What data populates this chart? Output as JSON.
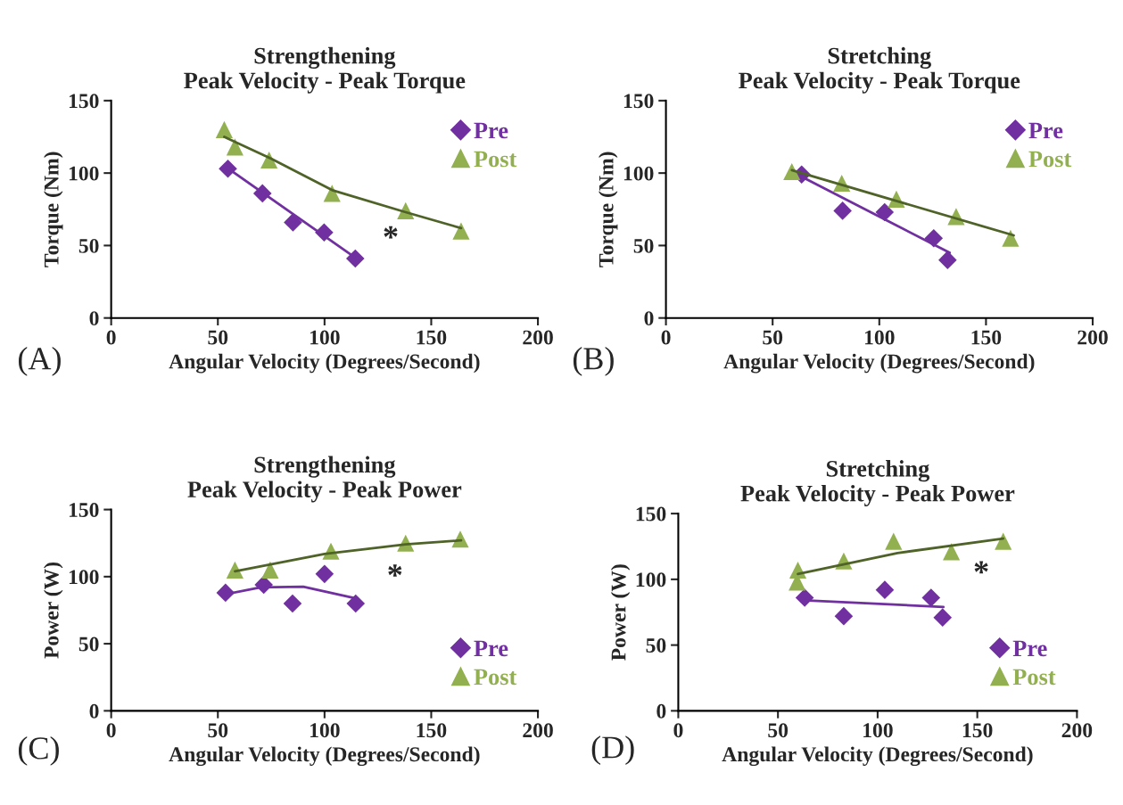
{
  "chart_data": [
    {
      "type": "scatter",
      "title": "Strengthening\nPeak Velocity - Peak Torque",
      "xlabel": "Angular Velocity (Degrees/Second)",
      "ylabel": "Torque (Nm)",
      "xlim": [
        0,
        200
      ],
      "ylim": [
        0,
        150
      ],
      "xticks": [
        0,
        50,
        100,
        150,
        200
      ],
      "yticks": [
        0,
        50,
        100,
        150
      ],
      "grid": false,
      "legend": "top right",
      "annotations": [
        "(A)",
        "*"
      ],
      "series": [
        {
          "name": "Pre",
          "marker": "diamond",
          "color": "#7030a0",
          "x": [
            54.7,
            70.9,
            85.2,
            99.8,
            114.4
          ],
          "values": [
            103,
            86,
            66,
            59,
            41
          ]
        },
        {
          "name": "Post",
          "marker": "triangle",
          "color": "#92b050",
          "x": [
            53,
            58,
            74,
            103.5,
            138,
            164
          ],
          "values": [
            130,
            118,
            109,
            86,
            74,
            60
          ]
        },
        {
          "type": "line",
          "color": "#7030a0",
          "x": [
            54,
            114
          ],
          "values": [
            104,
            42
          ]
        },
        {
          "type": "line",
          "color": "#4f6228",
          "x": [
            53,
            75,
            104,
            138,
            164
          ],
          "values": [
            125,
            110,
            88,
            73,
            62
          ]
        }
      ]
    },
    {
      "type": "scatter",
      "title": "Stretching\nPeak Velocity - Peak Torque",
      "xlabel": "Angular Velocity (Degrees/Second)",
      "ylabel": "Torque (Nm)",
      "xlim": [
        0,
        200
      ],
      "ylim": [
        0,
        150
      ],
      "xticks": [
        0,
        50,
        100,
        150,
        200
      ],
      "yticks": [
        0,
        50,
        100,
        150
      ],
      "grid": false,
      "legend": "top right",
      "annotations": [
        "(B)"
      ],
      "series": [
        {
          "name": "Pre",
          "marker": "diamond",
          "color": "#7030a0",
          "x": [
            63.6,
            82.8,
            102.5,
            125.5,
            132
          ],
          "values": [
            99,
            74,
            73,
            55,
            40
          ]
        },
        {
          "name": "Post",
          "marker": "triangle",
          "color": "#92b050",
          "x": [
            59,
            82.4,
            108,
            136,
            161.5
          ],
          "values": [
            101,
            93,
            82,
            70,
            55
          ]
        },
        {
          "type": "line",
          "color": "#7030a0",
          "x": [
            63,
            133
          ],
          "values": [
            98,
            45
          ]
        },
        {
          "type": "line",
          "color": "#4f6228",
          "x": [
            59,
            163
          ],
          "values": [
            102,
            57
          ]
        }
      ]
    },
    {
      "type": "scatter",
      "title": "Strengthening\nPeak Velocity - Peak Power",
      "xlabel": "Angular Velocity (Degrees/Second)",
      "ylabel": "Power (W)",
      "xlim": [
        0,
        200
      ],
      "ylim": [
        0,
        150
      ],
      "xticks": [
        0,
        50,
        100,
        150,
        200
      ],
      "yticks": [
        0,
        50,
        100,
        150
      ],
      "grid": false,
      "legend": "bottom right",
      "annotations": [
        "(C)",
        "*"
      ],
      "series": [
        {
          "name": "Pre",
          "marker": "diamond",
          "color": "#7030a0",
          "x": [
            53.6,
            71.5,
            85,
            100,
            114.6
          ],
          "values": [
            88,
            94,
            80,
            102,
            80
          ]
        },
        {
          "name": "Post",
          "marker": "triangle",
          "color": "#92b050",
          "x": [
            58,
            74.5,
            103,
            138,
            163.6
          ],
          "values": [
            105,
            105,
            119,
            125,
            128
          ]
        },
        {
          "type": "line",
          "color": "#7030a0",
          "x": [
            54,
            70,
            90,
            114
          ],
          "values": [
            87,
            92,
            92.5,
            84
          ]
        },
        {
          "type": "line",
          "color": "#4f6228",
          "x": [
            58,
            100,
            138,
            164
          ],
          "values": [
            104,
            117,
            124,
            127
          ]
        }
      ]
    },
    {
      "type": "scatter",
      "title": "Stretching\nPeak Velocity - Peak Power",
      "xlabel": "Angular Velocity (Degrees/Second)",
      "ylabel": "Power (W)",
      "xlim": [
        0,
        200
      ],
      "ylim": [
        0,
        150
      ],
      "xticks": [
        0,
        50,
        100,
        150,
        200
      ],
      "yticks": [
        0,
        50,
        100,
        150
      ],
      "grid": false,
      "legend": "bottom right",
      "annotations": [
        "(D)",
        "*"
      ],
      "series": [
        {
          "name": "Pre",
          "marker": "diamond",
          "color": "#7030a0",
          "x": [
            63.4,
            83,
            103.6,
            126.8,
            132.6
          ],
          "values": [
            86,
            72,
            92,
            86,
            71
          ]
        },
        {
          "name": "Post",
          "marker": "triangle",
          "color": "#92b050",
          "x": [
            60,
            59.6,
            83,
            108,
            137,
            163
          ],
          "values": [
            107,
            98,
            114,
            129,
            121,
            129
          ]
        },
        {
          "type": "line",
          "color": "#7030a0",
          "x": [
            63,
            133
          ],
          "values": [
            84,
            79
          ]
        },
        {
          "type": "line",
          "color": "#4f6228",
          "x": [
            60,
            110,
            163
          ],
          "values": [
            104,
            120,
            131
          ]
        }
      ]
    }
  ]
}
